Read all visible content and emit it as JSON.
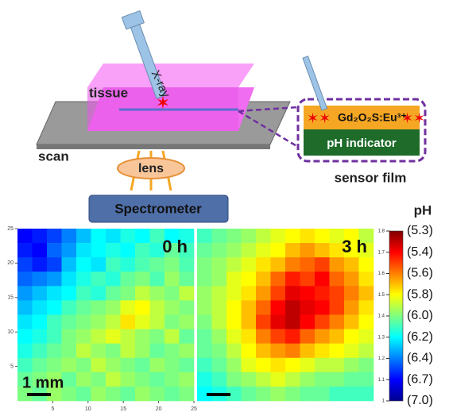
{
  "diagram": {
    "xray": "X-ray",
    "tissue": "tissue",
    "scan": "scan",
    "lens": "lens",
    "spectrometer": "Spectrometer",
    "phosphor": "Gd₂O₂S:Eu³⁺",
    "indicator": "pH indicator",
    "sensor": "sensor film"
  },
  "chart_data": {
    "type": "heatmap",
    "panels": [
      {
        "title": "0 h",
        "values": [
          [
            1.1,
            1.12,
            1.15,
            1.2,
            1.25,
            1.3,
            1.28,
            1.32,
            1.3,
            1.35,
            1.3,
            1.32
          ],
          [
            1.12,
            1.1,
            1.18,
            1.22,
            1.28,
            1.3,
            1.32,
            1.3,
            1.35,
            1.33,
            1.38,
            1.35
          ],
          [
            1.15,
            1.12,
            1.15,
            1.25,
            1.3,
            1.28,
            1.35,
            1.33,
            1.36,
            1.38,
            1.4,
            1.36
          ],
          [
            1.18,
            1.2,
            1.22,
            1.28,
            1.32,
            1.35,
            1.33,
            1.38,
            1.4,
            1.36,
            1.42,
            1.38
          ],
          [
            1.22,
            1.25,
            1.28,
            1.3,
            1.35,
            1.33,
            1.38,
            1.4,
            1.45,
            1.42,
            1.4,
            1.45
          ],
          [
            1.25,
            1.28,
            1.3,
            1.35,
            1.38,
            1.4,
            1.42,
            1.48,
            1.5,
            1.45,
            1.42,
            1.4
          ],
          [
            1.28,
            1.3,
            1.35,
            1.38,
            1.4,
            1.42,
            1.45,
            1.52,
            1.48,
            1.45,
            1.4,
            1.42
          ],
          [
            1.3,
            1.32,
            1.35,
            1.4,
            1.42,
            1.45,
            1.48,
            1.45,
            1.42,
            1.4,
            1.45,
            1.38
          ],
          [
            1.32,
            1.35,
            1.38,
            1.4,
            1.45,
            1.42,
            1.4,
            1.45,
            1.42,
            1.38,
            1.4,
            1.42
          ],
          [
            1.35,
            1.38,
            1.4,
            1.42,
            1.4,
            1.45,
            1.42,
            1.4,
            1.38,
            1.42,
            1.4,
            1.38
          ],
          [
            1.38,
            1.4,
            1.42,
            1.38,
            1.42,
            1.4,
            1.45,
            1.42,
            1.4,
            1.38,
            1.4,
            1.42
          ],
          [
            1.4,
            1.38,
            1.42,
            1.4,
            1.38,
            1.42,
            1.4,
            1.38,
            1.42,
            1.4,
            1.38,
            1.4
          ]
        ]
      },
      {
        "title": "3 h",
        "values": [
          [
            1.35,
            1.38,
            1.4,
            1.42,
            1.45,
            1.48,
            1.5,
            1.52,
            1.5,
            1.48,
            1.5,
            1.45
          ],
          [
            1.38,
            1.4,
            1.42,
            1.45,
            1.48,
            1.5,
            1.55,
            1.58,
            1.55,
            1.52,
            1.5,
            1.48
          ],
          [
            1.4,
            1.42,
            1.45,
            1.48,
            1.52,
            1.55,
            1.6,
            1.62,
            1.65,
            1.58,
            1.55,
            1.5
          ],
          [
            1.4,
            1.42,
            1.48,
            1.5,
            1.55,
            1.62,
            1.68,
            1.65,
            1.7,
            1.62,
            1.58,
            1.52
          ],
          [
            1.42,
            1.45,
            1.48,
            1.52,
            1.58,
            1.65,
            1.72,
            1.7,
            1.68,
            1.65,
            1.6,
            1.55
          ],
          [
            1.42,
            1.45,
            1.5,
            1.55,
            1.62,
            1.7,
            1.75,
            1.72,
            1.7,
            1.65,
            1.58,
            1.52
          ],
          [
            1.4,
            1.45,
            1.5,
            1.55,
            1.65,
            1.72,
            1.75,
            1.7,
            1.65,
            1.6,
            1.55,
            1.5
          ],
          [
            1.38,
            1.42,
            1.48,
            1.52,
            1.6,
            1.65,
            1.68,
            1.62,
            1.58,
            1.55,
            1.5,
            1.48
          ],
          [
            1.38,
            1.4,
            1.45,
            1.5,
            1.55,
            1.58,
            1.6,
            1.55,
            1.52,
            1.5,
            1.48,
            1.45
          ],
          [
            1.35,
            1.38,
            1.42,
            1.48,
            1.5,
            1.52,
            1.5,
            1.48,
            1.45,
            1.45,
            1.42,
            1.4
          ],
          [
            1.32,
            1.35,
            1.4,
            1.42,
            1.45,
            1.48,
            1.45,
            1.42,
            1.4,
            1.4,
            1.38,
            1.38
          ],
          [
            1.3,
            1.32,
            1.35,
            1.38,
            1.4,
            1.42,
            1.4,
            1.38,
            1.38,
            1.35,
            1.35,
            1.35
          ]
        ]
      }
    ],
    "xlim": [
      0,
      25
    ],
    "xticks": [
      5,
      10,
      15,
      20,
      25
    ],
    "ylim": [
      0,
      25
    ],
    "yticks": [
      5,
      10,
      15,
      20,
      25
    ],
    "colorbar": {
      "title": "pH",
      "lim": [
        1,
        1.8
      ],
      "ticks": [
        1,
        1.1,
        1.2,
        1.3,
        1.4,
        1.5,
        1.6,
        1.7,
        1.8
      ],
      "ph_labels": [
        "(7.0)",
        "(6.7)",
        "(6.4)",
        "(6.2)",
        "(6.0)",
        "(5.8)",
        "(5.6)",
        "(5.4)",
        "(5.3)"
      ]
    },
    "scale_bar": "1 mm"
  }
}
